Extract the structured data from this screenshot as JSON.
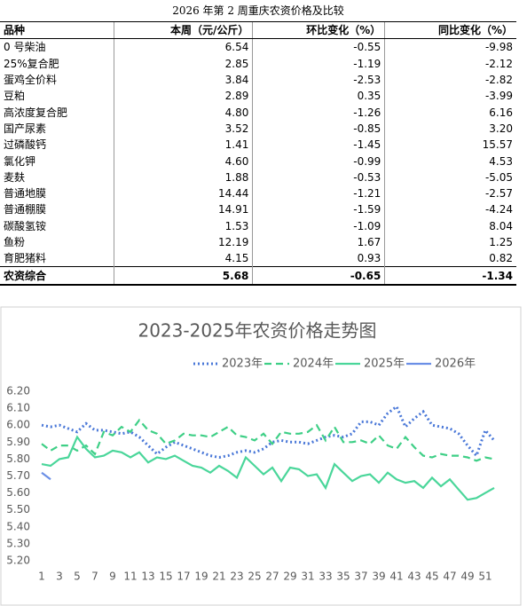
{
  "table": {
    "title": "2026 年第 2 周重庆农资价格及比较",
    "header": [
      "品种",
      "本周（元/公斤）",
      "环比变化（%）",
      "同比变化（%）"
    ],
    "rows": [
      [
        "0 号柴油",
        "6.54",
        "-0.55",
        "-9.98"
      ],
      [
        "25%复合肥",
        "2.85",
        "-1.19",
        "-2.12"
      ],
      [
        "蛋鸡全价料",
        "3.84",
        "-2.53",
        "-2.82"
      ],
      [
        "豆粕",
        "2.89",
        "0.35",
        "-3.99"
      ],
      [
        "高浓度复合肥",
        "4.80",
        "-1.26",
        "6.16"
      ],
      [
        "国产尿素",
        "3.52",
        "-0.85",
        "3.20"
      ],
      [
        "过磷酸钙",
        "1.41",
        "-1.45",
        "15.57"
      ],
      [
        "氯化钾",
        "4.60",
        "-0.99",
        "4.53"
      ],
      [
        "麦麸",
        "1.88",
        "-0.53",
        "-5.05"
      ],
      [
        "普通地膜",
        "14.44",
        "-1.21",
        "-2.57"
      ],
      [
        "普通棚膜",
        "14.91",
        "-1.59",
        "-4.24"
      ],
      [
        "碳酸氢铵",
        "1.53",
        "-1.09",
        "8.04"
      ],
      [
        "鱼粉",
        "12.19",
        "1.67",
        "1.25"
      ],
      [
        "育肥猪料",
        "4.15",
        "0.93",
        "0.82"
      ],
      [
        "农资综合",
        "5.68",
        "-0.65",
        "-1.34"
      ]
    ]
  },
  "chart_data": {
    "type": "line",
    "title": "2023-2025年农资价格走势图",
    "x": [
      1,
      2,
      3,
      4,
      5,
      6,
      7,
      8,
      9,
      10,
      11,
      12,
      13,
      14,
      15,
      16,
      17,
      18,
      19,
      20,
      21,
      22,
      23,
      24,
      25,
      26,
      27,
      28,
      29,
      30,
      31,
      32,
      33,
      34,
      35,
      36,
      37,
      38,
      39,
      40,
      41,
      42,
      43,
      44,
      45,
      46,
      47,
      48,
      49,
      50,
      51,
      52
    ],
    "xlim": [
      0,
      53
    ],
    "xticks": [
      1,
      3,
      5,
      7,
      9,
      11,
      13,
      15,
      17,
      19,
      21,
      23,
      25,
      27,
      29,
      31,
      33,
      35,
      37,
      39,
      41,
      43,
      45,
      47,
      49,
      51
    ],
    "ylim": [
      5.2,
      6.2
    ],
    "yticks": [
      {
        "value": 5.2,
        "label": "5.20"
      },
      {
        "value": 5.3,
        "label": "5.30"
      },
      {
        "value": 5.4,
        "label": "5.40"
      },
      {
        "value": 5.5,
        "label": "5.50"
      },
      {
        "value": 5.6,
        "label": "5.60"
      },
      {
        "value": 5.7,
        "label": "5.70"
      },
      {
        "value": 5.8,
        "label": "5.80"
      },
      {
        "value": 5.9,
        "label": "5.90"
      },
      {
        "value": 6.0,
        "label": "6.00"
      },
      {
        "value": 6.1,
        "label": "6.10"
      },
      {
        "value": 6.2,
        "label": "6.20"
      }
    ],
    "grid": false,
    "legend": "top",
    "series": [
      {
        "name": "2023年",
        "color": "#4a78d8",
        "dash": "dotted",
        "values": [
          6.0,
          5.99,
          6.0,
          5.98,
          5.96,
          6.01,
          5.97,
          5.97,
          5.96,
          5.95,
          5.96,
          5.93,
          5.88,
          5.83,
          5.87,
          5.9,
          5.88,
          5.86,
          5.84,
          5.82,
          5.81,
          5.82,
          5.84,
          5.85,
          5.84,
          5.86,
          5.9,
          5.91,
          5.9,
          5.9,
          5.89,
          5.91,
          5.93,
          5.94,
          5.93,
          5.95,
          6.02,
          6.02,
          6.0,
          6.07,
          6.11,
          5.99,
          6.04,
          6.08,
          6.0,
          5.99,
          5.98,
          5.95,
          5.88,
          5.82,
          5.97,
          5.91
        ]
      },
      {
        "name": "2024年",
        "color": "#3ecf86",
        "dash": "dashed",
        "values": [
          5.89,
          5.85,
          5.88,
          5.88,
          5.85,
          5.88,
          5.83,
          5.96,
          5.94,
          5.99,
          5.96,
          6.03,
          5.97,
          5.95,
          5.89,
          5.91,
          5.95,
          5.94,
          5.94,
          5.93,
          5.96,
          5.99,
          5.94,
          5.93,
          5.91,
          5.95,
          5.89,
          5.96,
          5.95,
          5.95,
          5.96,
          6.0,
          5.91,
          5.99,
          5.9,
          5.9,
          5.91,
          5.89,
          5.94,
          5.88,
          5.86,
          5.93,
          5.87,
          5.82,
          5.81,
          5.83,
          5.82,
          5.82,
          5.81,
          5.79,
          5.81,
          5.8
        ]
      },
      {
        "name": "2025年",
        "color": "#4ad69a",
        "dash": "solid",
        "values": [
          5.77,
          5.76,
          5.8,
          5.81,
          5.93,
          5.86,
          5.81,
          5.82,
          5.85,
          5.84,
          5.81,
          5.84,
          5.78,
          5.81,
          5.8,
          5.82,
          5.79,
          5.76,
          5.75,
          5.72,
          5.76,
          5.73,
          5.69,
          5.81,
          5.76,
          5.71,
          5.75,
          5.67,
          5.75,
          5.74,
          5.7,
          5.71,
          5.63,
          5.77,
          5.72,
          5.67,
          5.7,
          5.71,
          5.66,
          5.72,
          5.68,
          5.66,
          5.67,
          5.63,
          5.69,
          5.64,
          5.68,
          5.62,
          5.56,
          5.57,
          5.6,
          5.63
        ]
      },
      {
        "name": "2026年",
        "color": "#6b8fe6",
        "dash": "solid",
        "values": [
          5.72,
          5.68,
          null,
          null,
          null,
          null,
          null,
          null,
          null,
          null,
          null,
          null,
          null,
          null,
          null,
          null,
          null,
          null,
          null,
          null,
          null,
          null,
          null,
          null,
          null,
          null,
          null,
          null,
          null,
          null,
          null,
          null,
          null,
          null,
          null,
          null,
          null,
          null,
          null,
          null,
          null,
          null,
          null,
          null,
          null,
          null,
          null,
          null,
          null,
          null,
          null,
          null
        ]
      }
    ]
  }
}
